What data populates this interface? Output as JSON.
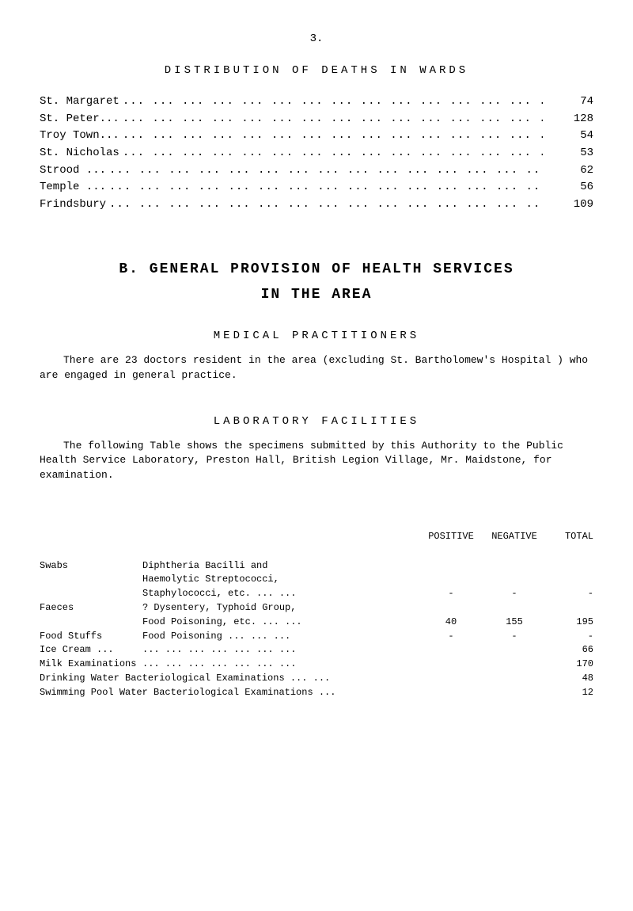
{
  "page_number": "3.",
  "distribution_title": "DISTRIBUTION   OF   DEATHS   IN   WARDS",
  "deaths_rows": [
    {
      "label": "St. Margaret",
      "value": "74"
    },
    {
      "label": "St. Peter...",
      "value": "128"
    },
    {
      "label": "Troy Town...",
      "value": "54"
    },
    {
      "label": "St. Nicholas",
      "value": "53"
    },
    {
      "label": "Strood   ...",
      "value": "62"
    },
    {
      "label": "Temple   ...",
      "value": "56"
    },
    {
      "label": "Frindsbury",
      "value": "109"
    }
  ],
  "main_heading": "B.   GENERAL   PROVISION   OF   HEALTH   SERVICES",
  "sub_heading": "IN   THE   AREA",
  "medical_title": "MEDICAL    PRACTITIONERS",
  "medical_paragraph": "There are 23 doctors resident in the area (excluding St. Bartholomew's Hospital ) who are engaged in general practice.",
  "lab_title": "LABORATORY    FACILITIES",
  "lab_paragraph": "The following Table shows the specimens submitted by this Authority to the Public Health Service Laboratory, Preston Hall, British Legion Village, Mr. Maidstone, for examination.",
  "lab_headers": {
    "positive": "POSITIVE",
    "negative": "NEGATIVE",
    "total": "TOTAL"
  },
  "lab_rows": [
    {
      "label": "Swabs",
      "desc_lines": [
        "Diphtheria Bacilli and",
        "Haemolytic Streptococci,",
        "Staphylococci, etc.   ... ..."
      ],
      "positive": "-",
      "negative": "-",
      "total": "-"
    },
    {
      "label": "Faeces",
      "desc_lines": [
        "? Dysentery, Typhoid Group,",
        "Food Poisoning, etc.  ... ..."
      ],
      "positive": "40",
      "negative": "155",
      "total": "195"
    },
    {
      "label": "Food Stuffs",
      "desc_lines": [
        "Food Poisoning   ... ... ..."
      ],
      "positive": "-",
      "negative": "-",
      "total": "-"
    },
    {
      "label": "Ice Cream   ...",
      "desc_lines": [
        "... ... ... ... ... ... ..."
      ],
      "positive": "",
      "negative": "",
      "total": "66"
    },
    {
      "label": "Milk Examinations",
      "desc_lines": [
        "... ... ... ... ... ... ..."
      ],
      "positive": "",
      "negative": "",
      "total": "170"
    },
    {
      "label": "",
      "desc_lines": [
        "Drinking Water Bacteriological Examinations   ... ..."
      ],
      "positive": "",
      "negative": "",
      "total": "48",
      "full_width": true
    },
    {
      "label": "",
      "desc_lines": [
        "Swimming Pool Water Bacteriological Examinations  ..."
      ],
      "positive": "",
      "negative": "",
      "total": "12",
      "full_width": true
    }
  ],
  "colors": {
    "background": "#ffffff",
    "text": "#000000"
  }
}
